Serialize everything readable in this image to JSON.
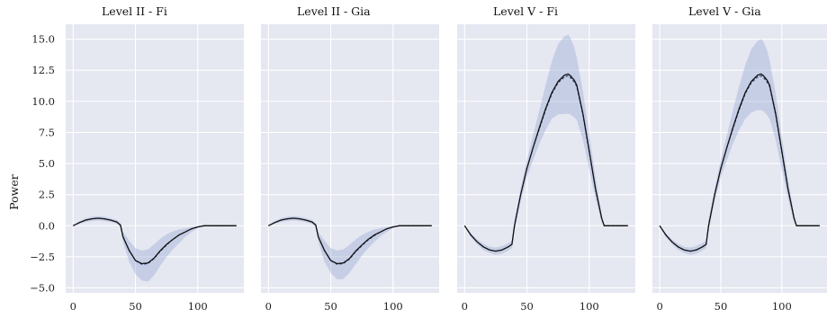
{
  "figure": {
    "ylabel": "Power",
    "style": {
      "panel_bg": "#e5e7f1",
      "grid": "#ffffff",
      "mean_color": "#111111",
      "median_color": "#1f3a6e",
      "band_color": "#9fb0d6"
    }
  },
  "chart_data": [
    {
      "type": "line",
      "title": "Level II - Fi",
      "xlim": [
        -6,
        137
      ],
      "ylim": [
        -5.4,
        16.2
      ],
      "xticks": [
        0,
        50,
        100
      ],
      "yticks": [
        -5.0,
        -2.5,
        0.0,
        2.5,
        5.0,
        7.5,
        10.0,
        12.5,
        15.0
      ],
      "ytick_labels": [
        "−5.0",
        "−2.5",
        "0.0",
        "2.5",
        "5.0",
        "7.5",
        "10.0",
        "12.5",
        "15.0"
      ],
      "grid": true,
      "x": [
        0,
        5,
        10,
        15,
        20,
        25,
        30,
        35,
        38,
        40,
        45,
        50,
        55,
        60,
        65,
        70,
        75,
        80,
        85,
        90,
        95,
        100,
        105,
        110,
        120,
        131
      ],
      "mean": [
        0.0,
        0.25,
        0.45,
        0.55,
        0.6,
        0.55,
        0.45,
        0.3,
        0.05,
        -0.9,
        -2.0,
        -2.8,
        -3.05,
        -3.0,
        -2.6,
        -2.0,
        -1.5,
        -1.1,
        -0.75,
        -0.5,
        -0.25,
        -0.1,
        0.0,
        0.0,
        0.0,
        0.0
      ],
      "median": [
        0.0,
        0.25,
        0.45,
        0.55,
        0.6,
        0.55,
        0.45,
        0.3,
        0.05,
        -0.9,
        -2.0,
        -2.8,
        -3.1,
        -3.05,
        -2.65,
        -2.05,
        -1.55,
        -1.1,
        -0.75,
        -0.5,
        -0.25,
        -0.1,
        0.0,
        0.0,
        0.0,
        0.0
      ],
      "band_upper": [
        0.0,
        0.35,
        0.6,
        0.72,
        0.78,
        0.72,
        0.6,
        0.45,
        0.2,
        -0.5,
        -1.2,
        -1.8,
        -2.0,
        -1.9,
        -1.5,
        -1.05,
        -0.7,
        -0.45,
        -0.3,
        -0.2,
        -0.1,
        -0.03,
        0.0,
        0.0,
        0.0,
        0.0
      ],
      "band_lower": [
        0.0,
        0.15,
        0.3,
        0.38,
        0.42,
        0.38,
        0.3,
        0.15,
        -0.1,
        -1.3,
        -2.9,
        -3.9,
        -4.4,
        -4.5,
        -4.0,
        -3.2,
        -2.5,
        -1.9,
        -1.4,
        -0.9,
        -0.5,
        -0.2,
        -0.05,
        0.0,
        0.0,
        0.0
      ]
    },
    {
      "type": "line",
      "title": "Level II - Gia",
      "xlim": [
        -6,
        137
      ],
      "ylim": [
        -5.4,
        16.2
      ],
      "xticks": [
        0,
        50,
        100
      ],
      "yticks": [
        -5.0,
        -2.5,
        0.0,
        2.5,
        5.0,
        7.5,
        10.0,
        12.5,
        15.0
      ],
      "grid": true,
      "x": [
        0,
        5,
        10,
        15,
        20,
        25,
        30,
        35,
        38,
        40,
        45,
        50,
        55,
        60,
        65,
        70,
        75,
        80,
        85,
        90,
        95,
        100,
        105,
        110,
        120,
        131
      ],
      "mean": [
        0.0,
        0.25,
        0.45,
        0.55,
        0.6,
        0.55,
        0.45,
        0.3,
        0.05,
        -0.9,
        -2.0,
        -2.8,
        -3.05,
        -3.0,
        -2.65,
        -2.05,
        -1.55,
        -1.1,
        -0.75,
        -0.5,
        -0.25,
        -0.1,
        0.0,
        0.0,
        0.0,
        0.0
      ],
      "median": [
        0.0,
        0.25,
        0.45,
        0.55,
        0.6,
        0.55,
        0.45,
        0.3,
        0.05,
        -0.9,
        -2.0,
        -2.8,
        -3.1,
        -3.05,
        -2.7,
        -2.1,
        -1.6,
        -1.15,
        -0.8,
        -0.5,
        -0.25,
        -0.1,
        0.0,
        0.0,
        0.0,
        0.0
      ],
      "band_upper": [
        0.0,
        0.35,
        0.6,
        0.72,
        0.78,
        0.72,
        0.6,
        0.45,
        0.2,
        -0.5,
        -1.2,
        -1.8,
        -2.0,
        -1.9,
        -1.55,
        -1.1,
        -0.75,
        -0.5,
        -0.3,
        -0.2,
        -0.1,
        -0.03,
        0.0,
        0.0,
        0.0,
        0.0
      ],
      "band_lower": [
        0.0,
        0.15,
        0.3,
        0.38,
        0.42,
        0.38,
        0.3,
        0.15,
        -0.1,
        -1.3,
        -2.9,
        -3.8,
        -4.3,
        -4.3,
        -3.8,
        -3.1,
        -2.4,
        -1.8,
        -1.3,
        -0.85,
        -0.5,
        -0.2,
        -0.05,
        0.0,
        0.0,
        0.0
      ]
    },
    {
      "type": "line",
      "title": "Level V - Fi",
      "xlim": [
        -6,
        137
      ],
      "ylim": [
        -5.4,
        16.2
      ],
      "xticks": [
        0,
        50,
        100
      ],
      "yticks": [
        -5.0,
        -2.5,
        0.0,
        2.5,
        5.0,
        7.5,
        10.0,
        12.5,
        15.0
      ],
      "grid": true,
      "x": [
        0,
        5,
        10,
        15,
        20,
        25,
        30,
        35,
        38,
        40,
        45,
        50,
        55,
        60,
        65,
        70,
        75,
        80,
        83,
        85,
        88,
        90,
        95,
        100,
        105,
        110,
        112,
        120,
        131
      ],
      "mean": [
        0.0,
        -0.75,
        -1.3,
        -1.7,
        -1.95,
        -2.05,
        -1.95,
        -1.7,
        -1.5,
        0.0,
        2.5,
        4.6,
        6.3,
        7.9,
        9.4,
        10.7,
        11.6,
        12.1,
        12.2,
        12.05,
        11.7,
        11.3,
        9.0,
        6.0,
        3.0,
        0.6,
        0.0,
        0.0,
        0.0
      ],
      "median": [
        0.0,
        -0.75,
        -1.3,
        -1.7,
        -1.95,
        -2.05,
        -1.95,
        -1.7,
        -1.5,
        0.0,
        2.5,
        4.6,
        6.3,
        7.8,
        9.3,
        10.6,
        11.5,
        11.95,
        12.05,
        11.9,
        11.55,
        11.2,
        8.9,
        5.9,
        2.95,
        0.6,
        0.0,
        0.0,
        0.0
      ],
      "band_upper": [
        0.0,
        -0.6,
        -1.1,
        -1.45,
        -1.7,
        -1.75,
        -1.65,
        -1.4,
        -1.2,
        0.4,
        3.0,
        5.3,
        7.3,
        9.3,
        11.3,
        13.2,
        14.6,
        15.2,
        15.35,
        15.1,
        14.3,
        13.5,
        10.8,
        7.4,
        3.9,
        0.9,
        0.0,
        0.0,
        0.0
      ],
      "band_lower": [
        0.0,
        -0.9,
        -1.5,
        -1.95,
        -2.2,
        -2.35,
        -2.25,
        -2.0,
        -1.8,
        -0.4,
        2.0,
        3.9,
        5.3,
        6.6,
        7.7,
        8.6,
        8.95,
        9.0,
        9.0,
        8.95,
        8.7,
        8.5,
        6.9,
        4.5,
        2.2,
        0.3,
        0.0,
        0.0,
        0.0
      ]
    },
    {
      "type": "line",
      "title": "Level V - Gia",
      "xlim": [
        -6,
        137
      ],
      "ylim": [
        -5.4,
        16.2
      ],
      "xticks": [
        0,
        50,
        100
      ],
      "yticks": [
        -5.0,
        -2.5,
        0.0,
        2.5,
        5.0,
        7.5,
        10.0,
        12.5,
        15.0
      ],
      "grid": true,
      "x": [
        0,
        5,
        10,
        15,
        20,
        25,
        30,
        35,
        38,
        40,
        45,
        50,
        55,
        60,
        65,
        70,
        75,
        80,
        83,
        85,
        88,
        90,
        95,
        100,
        105,
        110,
        112,
        120,
        131
      ],
      "mean": [
        0.0,
        -0.75,
        -1.3,
        -1.7,
        -1.95,
        -2.05,
        -1.95,
        -1.7,
        -1.5,
        0.0,
        2.5,
        4.6,
        6.3,
        7.9,
        9.4,
        10.7,
        11.6,
        12.1,
        12.2,
        12.05,
        11.7,
        11.3,
        9.0,
        6.0,
        3.0,
        0.6,
        0.0,
        0.0,
        0.0
      ],
      "median": [
        0.0,
        -0.75,
        -1.3,
        -1.7,
        -1.95,
        -2.05,
        -1.95,
        -1.7,
        -1.5,
        0.0,
        2.5,
        4.6,
        6.3,
        7.8,
        9.3,
        10.6,
        11.5,
        11.95,
        12.05,
        11.9,
        11.55,
        11.2,
        8.9,
        5.9,
        2.95,
        0.6,
        0.0,
        0.0,
        0.0
      ],
      "band_upper": [
        0.0,
        -0.6,
        -1.1,
        -1.45,
        -1.7,
        -1.75,
        -1.65,
        -1.4,
        -1.2,
        0.4,
        3.0,
        5.3,
        7.3,
        9.3,
        11.2,
        12.9,
        14.2,
        14.85,
        15.0,
        14.8,
        14.1,
        13.3,
        10.6,
        7.2,
        3.8,
        0.9,
        0.0,
        0.0,
        0.0
      ],
      "band_lower": [
        0.0,
        -0.9,
        -1.5,
        -1.95,
        -2.2,
        -2.35,
        -2.25,
        -2.0,
        -1.8,
        -0.4,
        2.0,
        3.9,
        5.3,
        6.6,
        7.7,
        8.6,
        9.1,
        9.3,
        9.3,
        9.2,
        8.9,
        8.6,
        6.9,
        4.5,
        2.2,
        0.3,
        0.0,
        0.0,
        0.0
      ]
    }
  ]
}
